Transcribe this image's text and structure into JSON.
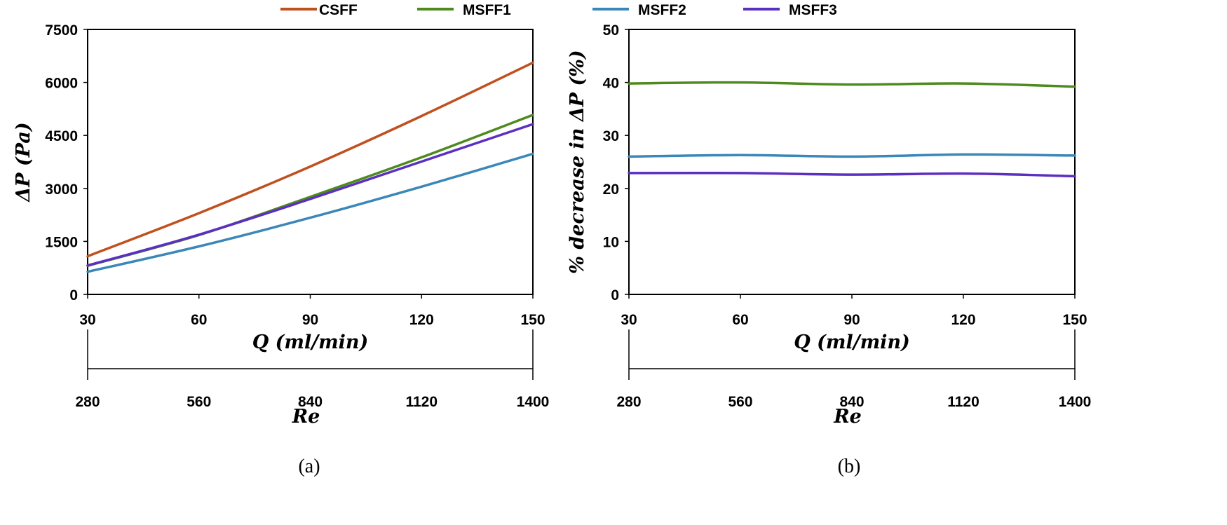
{
  "legend": [
    {
      "name": "CSFF",
      "color": "#c0501e"
    },
    {
      "name": "MSFF1",
      "color": "#4e8a1e"
    },
    {
      "name": "MSFF2",
      "color": "#3a87b8"
    },
    {
      "name": "MSFF3",
      "color": "#5b2fc0"
    }
  ],
  "chart_data": [
    {
      "type": "line",
      "caption": "(a)",
      "title": "",
      "xlabel": "Q (ml/min)",
      "ylabel": "ΔP (Pa)",
      "secondary_xlabel": "Re",
      "xlim": [
        30,
        150
      ],
      "ylim": [
        0,
        7500
      ],
      "xticks": [
        "30",
        "60",
        "90",
        "120",
        "150"
      ],
      "yticks": [
        "0",
        "1500",
        "3000",
        "4500",
        "6000",
        "7500"
      ],
      "secondary_xticks": [
        "280",
        "560",
        "840",
        "1120",
        "1400"
      ],
      "x": [
        30,
        60,
        90,
        120,
        150
      ],
      "series": [
        {
          "name": "CSFF",
          "color": "#c0501e",
          "values": [
            1080,
            2300,
            3620,
            5050,
            6560
          ]
        },
        {
          "name": "MSFF1",
          "color": "#4e8a1e",
          "values": [
            810,
            1680,
            2760,
            3880,
            5080
          ]
        },
        {
          "name": "MSFF2",
          "color": "#3a87b8",
          "values": [
            640,
            1360,
            2170,
            3050,
            3980
          ]
        },
        {
          "name": "MSFF3",
          "color": "#5b2fc0",
          "values": [
            820,
            1690,
            2700,
            3760,
            4820
          ]
        }
      ]
    },
    {
      "type": "line",
      "caption": "(b)",
      "title": "",
      "xlabel": "Q (ml/min)",
      "ylabel": "% decrease in ΔP (%)",
      "secondary_xlabel": "Re",
      "xlim": [
        30,
        150
      ],
      "ylim": [
        0,
        50
      ],
      "xticks": [
        "30",
        "60",
        "90",
        "120",
        "150"
      ],
      "yticks": [
        "0",
        "10",
        "20",
        "30",
        "40",
        "50"
      ],
      "secondary_xticks": [
        "280",
        "560",
        "840",
        "1120",
        "1400"
      ],
      "x": [
        30,
        60,
        90,
        120,
        150
      ],
      "series": [
        {
          "name": "MSFF1",
          "color": "#4e8a1e",
          "values": [
            39.8,
            40.0,
            39.6,
            39.8,
            39.2
          ]
        },
        {
          "name": "MSFF2",
          "color": "#3a87b8",
          "values": [
            26.0,
            26.3,
            26.0,
            26.4,
            26.2
          ]
        },
        {
          "name": "MSFF3",
          "color": "#5b2fc0",
          "values": [
            22.9,
            22.9,
            22.6,
            22.8,
            22.3
          ]
        }
      ]
    }
  ]
}
